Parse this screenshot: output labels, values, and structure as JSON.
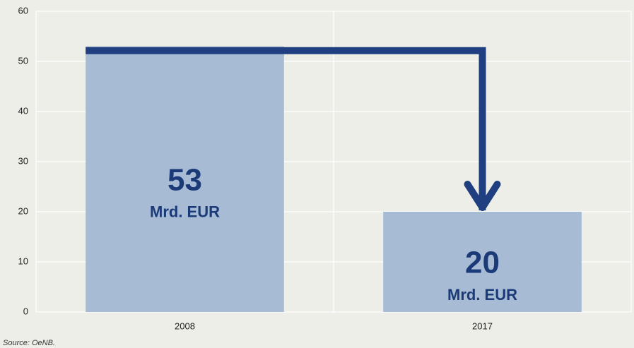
{
  "chart_data": {
    "type": "bar",
    "categories": [
      "2008",
      "2017"
    ],
    "values": [
      53,
      20
    ],
    "data_label_unit": "Mrd. EUR",
    "color": "#a8bbd4",
    "annotation_color": "#1f3f80",
    "ylim": [
      0,
      60
    ],
    "yticks": [
      0,
      10,
      20,
      30,
      40,
      50,
      60
    ],
    "grid": true,
    "source": "Source: OeNB."
  }
}
